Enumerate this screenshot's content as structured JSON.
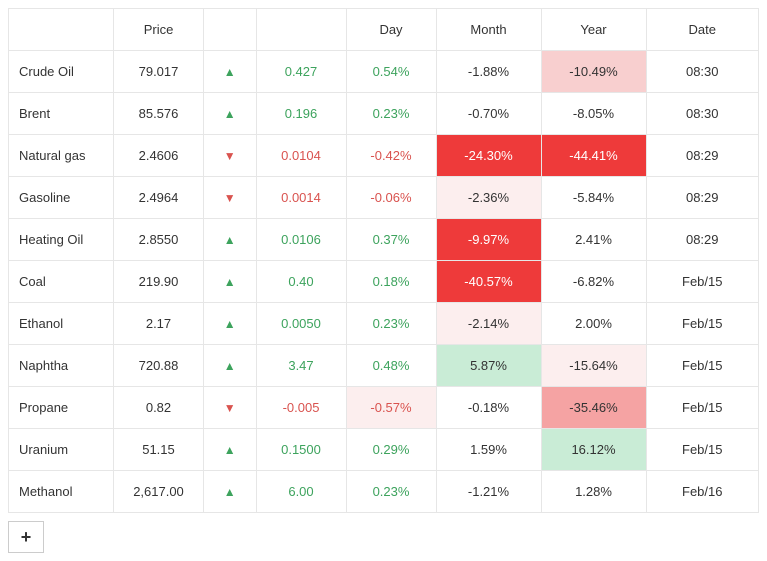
{
  "colors": {
    "up_text": "#3da35d",
    "down_text": "#d9534f",
    "plain_text": "#333333",
    "border": "#e6e6e6",
    "heat_down_strong": "#ee3a3a",
    "heat_down_strong_text": "#ffffff",
    "heat_down_medium": "#f8cfcf",
    "heat_down_light": "#fceeee",
    "heat_down_faint": "#fef6f6",
    "heat_up_medium": "#c9ecd6",
    "heat_up_light": "#e9f7ef"
  },
  "columns": {
    "name": "",
    "price": "Price",
    "arrow": "",
    "change": "",
    "day": "Day",
    "month": "Month",
    "year": "Year",
    "date": "Date"
  },
  "col_widths": {
    "name": "14%",
    "price": "12%",
    "arrow": "7%",
    "change": "12%",
    "day": "12%",
    "month": "14%",
    "year": "14%",
    "date": "15%"
  },
  "rows": [
    {
      "name": "Crude Oil",
      "price": "79.017",
      "dir": "up",
      "change": "0.427",
      "day": "0.54%",
      "month": {
        "v": "-1.88%",
        "bg": null,
        "fg": null
      },
      "year": {
        "v": "-10.49%",
        "bg": "#f8cfcf",
        "fg": null
      },
      "date": "08:30"
    },
    {
      "name": "Brent",
      "price": "85.576",
      "dir": "up",
      "change": "0.196",
      "day": "0.23%",
      "month": {
        "v": "-0.70%",
        "bg": null,
        "fg": null
      },
      "year": {
        "v": "-8.05%",
        "bg": null,
        "fg": null
      },
      "date": "08:30"
    },
    {
      "name": "Natural gas",
      "price": "2.4606",
      "dir": "down",
      "change": "0.0104",
      "day": "-0.42%",
      "month": {
        "v": "-24.30%",
        "bg": "#ee3a3a",
        "fg": "#ffffff"
      },
      "year": {
        "v": "-44.41%",
        "bg": "#ee3a3a",
        "fg": "#ffffff"
      },
      "date": "08:29"
    },
    {
      "name": "Gasoline",
      "price": "2.4964",
      "dir": "down",
      "change": "0.0014",
      "day": "-0.06%",
      "month": {
        "v": "-2.36%",
        "bg": "#fceeee",
        "fg": null
      },
      "year": {
        "v": "-5.84%",
        "bg": null,
        "fg": null
      },
      "date": "08:29"
    },
    {
      "name": "Heating Oil",
      "price": "2.8550",
      "dir": "up",
      "change": "0.0106",
      "day": "0.37%",
      "month": {
        "v": "-9.97%",
        "bg": "#ee3a3a",
        "fg": "#ffffff"
      },
      "year": {
        "v": "2.41%",
        "bg": null,
        "fg": null
      },
      "date": "08:29"
    },
    {
      "name": "Coal",
      "price": "219.90",
      "dir": "up",
      "change": "0.40",
      "day": "0.18%",
      "month": {
        "v": "-40.57%",
        "bg": "#ee3a3a",
        "fg": "#ffffff"
      },
      "year": {
        "v": "-6.82%",
        "bg": null,
        "fg": null
      },
      "date": "Feb/15"
    },
    {
      "name": "Ethanol",
      "price": "2.17",
      "dir": "up",
      "change": "0.0050",
      "day": "0.23%",
      "month": {
        "v": "-2.14%",
        "bg": "#fceeee",
        "fg": null
      },
      "year": {
        "v": "2.00%",
        "bg": null,
        "fg": null
      },
      "date": "Feb/15"
    },
    {
      "name": "Naphtha",
      "price": "720.88",
      "dir": "up",
      "change": "3.47",
      "day": "0.48%",
      "month": {
        "v": "5.87%",
        "bg": "#c9ecd6",
        "fg": null
      },
      "year": {
        "v": "-15.64%",
        "bg": "#fceeee",
        "fg": null
      },
      "date": "Feb/15"
    },
    {
      "name": "Propane",
      "price": "0.82",
      "dir": "down",
      "change": "-0.005",
      "day": "-0.57%",
      "day_bg": "#fceeee",
      "month": {
        "v": "-0.18%",
        "bg": null,
        "fg": null
      },
      "year": {
        "v": "-35.46%",
        "bg": "#f5a3a3",
        "fg": null
      },
      "date": "Feb/15"
    },
    {
      "name": "Uranium",
      "price": "51.15",
      "dir": "up",
      "change": "0.1500",
      "day": "0.29%",
      "month": {
        "v": "1.59%",
        "bg": null,
        "fg": null
      },
      "year": {
        "v": "16.12%",
        "bg": "#c9ecd6",
        "fg": null
      },
      "date": "Feb/15"
    },
    {
      "name": "Methanol",
      "price": "2,617.00",
      "dir": "up",
      "change": "6.00",
      "day": "0.23%",
      "month": {
        "v": "-1.21%",
        "bg": null,
        "fg": null
      },
      "year": {
        "v": "1.28%",
        "bg": null,
        "fg": null
      },
      "date": "Feb/16"
    }
  ],
  "add_button_label": "+"
}
